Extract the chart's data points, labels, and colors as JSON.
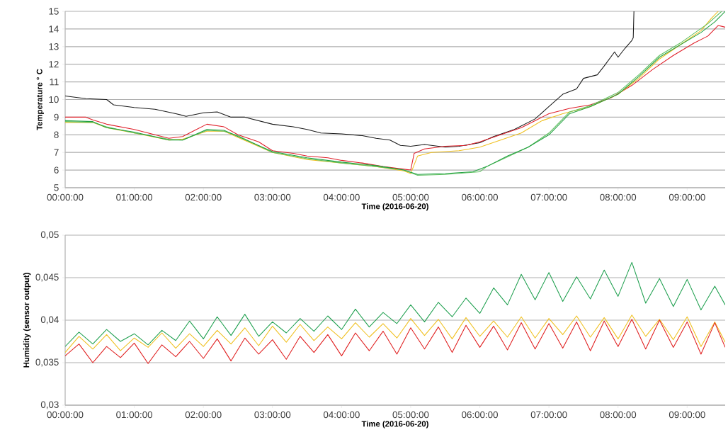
{
  "chart_data": [
    {
      "type": "line",
      "xlabel": "Time (2016-06-20)",
      "ylabel": "Temperature ° C",
      "xlim": [
        0,
        9.55
      ],
      "ylim": [
        5,
        15
      ],
      "xticks": [
        {
          "value": 0,
          "label": "00:00:00"
        },
        {
          "value": 1,
          "label": "01:00:00"
        },
        {
          "value": 2,
          "label": "02:00:00"
        },
        {
          "value": 3,
          "label": "03:00:00"
        },
        {
          "value": 4,
          "label": "04:00:00"
        },
        {
          "value": 5,
          "label": "05:00:00"
        },
        {
          "value": 6,
          "label": "06:00:00"
        },
        {
          "value": 7,
          "label": "07:00:00"
        },
        {
          "value": 8,
          "label": "08:00:00"
        },
        {
          "value": 9,
          "label": "09:00:00"
        }
      ],
      "yticks": [
        5,
        6,
        7,
        8,
        9,
        10,
        11,
        12,
        13,
        14,
        15
      ],
      "grid": "y",
      "series": [
        {
          "color": "#1a1a1a",
          "x": [
            0,
            0.3,
            0.6,
            0.7,
            1.0,
            1.3,
            1.6,
            1.75,
            2.0,
            2.2,
            2.4,
            2.6,
            3.0,
            3.3,
            3.5,
            3.7,
            4.0,
            4.3,
            4.5,
            4.7,
            4.85,
            5.0,
            5.2,
            5.5,
            5.7,
            6.0,
            6.2,
            6.5,
            6.8,
            7.0,
            7.2,
            7.4,
            7.5,
            7.7,
            7.8,
            7.95,
            8.0,
            8.1,
            8.2,
            8.22,
            8.23
          ],
          "values": [
            10.2,
            10.05,
            10.0,
            9.7,
            9.55,
            9.45,
            9.2,
            9.05,
            9.25,
            9.3,
            9.0,
            9.0,
            8.6,
            8.45,
            8.3,
            8.1,
            8.05,
            7.95,
            7.8,
            7.7,
            7.4,
            7.35,
            7.45,
            7.3,
            7.35,
            7.55,
            7.9,
            8.3,
            8.9,
            9.6,
            10.3,
            10.6,
            11.2,
            11.4,
            11.9,
            12.7,
            12.4,
            12.9,
            13.35,
            13.5,
            15
          ]
        },
        {
          "color": "#e0202a",
          "x": [
            0,
            0.3,
            0.4,
            0.6,
            1.0,
            1.5,
            1.7,
            1.9,
            2.05,
            2.3,
            2.5,
            2.8,
            3.0,
            3.3,
            3.5,
            3.8,
            4.0,
            4.3,
            4.6,
            4.9,
            5.0,
            5.05,
            5.2,
            5.5,
            5.8,
            6.0,
            6.3,
            6.6,
            6.9,
            7.0,
            7.3,
            7.6,
            7.9,
            8.2,
            8.5,
            8.8,
            9.1,
            9.3,
            9.45,
            9.55
          ],
          "values": [
            9.0,
            9.0,
            8.85,
            8.6,
            8.3,
            7.8,
            7.9,
            8.3,
            8.6,
            8.45,
            8.0,
            7.6,
            7.1,
            6.95,
            6.8,
            6.7,
            6.55,
            6.4,
            6.2,
            6.05,
            6.0,
            6.95,
            7.2,
            7.35,
            7.4,
            7.6,
            8.0,
            8.4,
            9.0,
            9.2,
            9.5,
            9.7,
            10.1,
            10.8,
            11.7,
            12.5,
            13.2,
            13.6,
            14.2,
            14.1
          ]
        },
        {
          "color": "#f0c020",
          "x": [
            0,
            0.4,
            0.6,
            1.0,
            1.5,
            1.7,
            2.05,
            2.3,
            2.5,
            3.0,
            3.5,
            4.0,
            4.5,
            4.9,
            5.0,
            5.1,
            5.3,
            5.7,
            6.0,
            6.3,
            6.6,
            6.9,
            7.2,
            7.6,
            8.0,
            8.3,
            8.6,
            8.9,
            9.2,
            9.35,
            9.45
          ],
          "values": [
            8.7,
            8.7,
            8.4,
            8.1,
            7.7,
            7.75,
            8.2,
            8.2,
            7.85,
            7.0,
            6.6,
            6.4,
            6.2,
            5.95,
            5.8,
            6.8,
            7.0,
            7.1,
            7.3,
            7.7,
            8.1,
            8.8,
            9.2,
            9.6,
            10.3,
            11.2,
            12.3,
            13.1,
            13.9,
            14.6,
            15
          ]
        },
        {
          "color": "#60c060",
          "x": [
            0,
            0.4,
            0.6,
            1.0,
            1.5,
            1.7,
            2.05,
            2.3,
            2.5,
            3.0,
            3.5,
            4.0,
            4.5,
            4.9,
            5.1,
            5.5,
            6.0,
            6.1,
            6.4,
            6.7,
            7.0,
            7.3,
            7.6,
            8.0,
            8.3,
            8.6,
            8.9,
            9.3,
            9.5
          ],
          "values": [
            8.75,
            8.7,
            8.45,
            8.1,
            7.75,
            7.7,
            8.25,
            8.2,
            7.95,
            7.0,
            6.65,
            6.4,
            6.2,
            6.0,
            5.7,
            5.75,
            5.9,
            6.2,
            6.75,
            7.3,
            8.1,
            9.3,
            9.65,
            10.4,
            11.4,
            12.5,
            13.2,
            14.3,
            15
          ]
        },
        {
          "color": "#20a040",
          "x": [
            0,
            0.4,
            0.6,
            1.0,
            1.5,
            1.7,
            2.05,
            2.3,
            2.5,
            3.0,
            3.5,
            4.0,
            4.5,
            4.9,
            5.1,
            5.5,
            5.9,
            6.1,
            6.4,
            6.7,
            7.0,
            7.3,
            7.6,
            8.0,
            8.3,
            8.6,
            8.9,
            9.2,
            9.4,
            9.55
          ],
          "values": [
            8.8,
            8.75,
            8.4,
            8.15,
            7.7,
            7.7,
            8.3,
            8.25,
            7.9,
            7.05,
            6.7,
            6.45,
            6.25,
            6.0,
            5.75,
            5.8,
            5.9,
            6.2,
            6.8,
            7.3,
            8.0,
            9.2,
            9.6,
            10.3,
            11.3,
            12.4,
            13.1,
            13.8,
            14.4,
            15
          ]
        }
      ]
    },
    {
      "type": "line",
      "xlabel": "Time (2016-06-20)",
      "ylabel": "Humidity (sensor output)",
      "xlim": [
        0,
        9.55
      ],
      "ylim": [
        0.03,
        0.05
      ],
      "xticks": [
        {
          "value": 0,
          "label": "00:00:00"
        },
        {
          "value": 1,
          "label": "01:00:00"
        },
        {
          "value": 2,
          "label": "02:00:00"
        },
        {
          "value": 3,
          "label": "03:00:00"
        },
        {
          "value": 4,
          "label": "04:00:00"
        },
        {
          "value": 5,
          "label": "05:00:00"
        },
        {
          "value": 6,
          "label": "06:00:00"
        },
        {
          "value": 7,
          "label": "07:00:00"
        },
        {
          "value": 8,
          "label": "08:00:00"
        },
        {
          "value": 9,
          "label": "09:00:00"
        }
      ],
      "yticks": [
        {
          "value": 0.03,
          "label": "0,03"
        },
        {
          "value": 0.035,
          "label": "0,035"
        },
        {
          "value": 0.04,
          "label": "0,04"
        },
        {
          "value": 0.045,
          "label": "0,045"
        },
        {
          "value": 0.05,
          "label": "0,05"
        }
      ],
      "grid": "y",
      "series": [
        {
          "color": "#f0c020",
          "x": [
            0,
            0.2,
            0.4,
            0.6,
            0.8,
            1.0,
            1.2,
            1.4,
            1.6,
            1.8,
            2.0,
            2.2,
            2.4,
            2.6,
            2.8,
            3.0,
            3.2,
            3.4,
            3.6,
            3.8,
            4.0,
            4.2,
            4.4,
            4.6,
            4.8,
            5.0,
            5.2,
            5.4,
            5.6,
            5.8,
            6.0,
            6.2,
            6.4,
            6.6,
            6.8,
            7.0,
            7.2,
            7.4,
            7.6,
            7.8,
            8.0,
            8.2,
            8.4,
            8.6,
            8.8,
            9.0,
            9.2,
            9.4,
            9.55
          ],
          "values": [
            0.0362,
            0.0381,
            0.0366,
            0.0383,
            0.0364,
            0.0379,
            0.0368,
            0.0385,
            0.0367,
            0.0384,
            0.0369,
            0.0388,
            0.0372,
            0.0391,
            0.037,
            0.0393,
            0.0374,
            0.0395,
            0.0376,
            0.0392,
            0.0378,
            0.0397,
            0.038,
            0.0396,
            0.0379,
            0.0402,
            0.0382,
            0.0401,
            0.0378,
            0.0403,
            0.0381,
            0.0399,
            0.038,
            0.0404,
            0.0379,
            0.0402,
            0.0383,
            0.0405,
            0.038,
            0.0403,
            0.0378,
            0.0406,
            0.0381,
            0.0401,
            0.0377,
            0.0404,
            0.0369,
            0.0398,
            0.0374
          ]
        },
        {
          "color": "#e02020",
          "x": [
            0,
            0.2,
            0.4,
            0.6,
            0.8,
            1.0,
            1.2,
            1.4,
            1.6,
            1.8,
            2.0,
            2.2,
            2.4,
            2.6,
            2.8,
            3.0,
            3.2,
            3.4,
            3.6,
            3.8,
            4.0,
            4.2,
            4.4,
            4.6,
            4.8,
            5.0,
            5.2,
            5.4,
            5.6,
            5.8,
            6.0,
            6.2,
            6.4,
            6.6,
            6.8,
            7.0,
            7.2,
            7.4,
            7.6,
            7.8,
            8.0,
            8.2,
            8.4,
            8.6,
            8.8,
            9.0,
            9.2,
            9.4,
            9.55
          ],
          "values": [
            0.0358,
            0.0372,
            0.035,
            0.0369,
            0.0356,
            0.0373,
            0.0349,
            0.0371,
            0.0357,
            0.0375,
            0.0355,
            0.0378,
            0.0352,
            0.0379,
            0.036,
            0.0377,
            0.0354,
            0.0381,
            0.0362,
            0.0383,
            0.0358,
            0.0385,
            0.0364,
            0.0387,
            0.036,
            0.0391,
            0.0366,
            0.0392,
            0.0362,
            0.0394,
            0.0368,
            0.0393,
            0.0365,
            0.0397,
            0.0366,
            0.0396,
            0.0367,
            0.0398,
            0.0364,
            0.0399,
            0.0369,
            0.0401,
            0.0366,
            0.04,
            0.0368,
            0.0398,
            0.036,
            0.0397,
            0.0368
          ]
        },
        {
          "color": "#20a050",
          "x": [
            0,
            0.2,
            0.4,
            0.6,
            0.8,
            1.0,
            1.2,
            1.4,
            1.6,
            1.8,
            2.0,
            2.2,
            2.4,
            2.6,
            2.8,
            3.0,
            3.2,
            3.4,
            3.6,
            3.8,
            4.0,
            4.2,
            4.4,
            4.6,
            4.8,
            5.0,
            5.2,
            5.4,
            5.6,
            5.8,
            6.0,
            6.2,
            6.4,
            6.6,
            6.8,
            7.0,
            7.2,
            7.4,
            7.6,
            7.8,
            8.0,
            8.2,
            8.4,
            8.6,
            8.8,
            9.0,
            9.2,
            9.4,
            9.55
          ],
          "values": [
            0.0369,
            0.0386,
            0.0372,
            0.0389,
            0.0375,
            0.0384,
            0.0371,
            0.0388,
            0.0376,
            0.0399,
            0.0378,
            0.0404,
            0.0382,
            0.0407,
            0.0381,
            0.0398,
            0.0385,
            0.0402,
            0.0387,
            0.0405,
            0.0389,
            0.0413,
            0.0392,
            0.0409,
            0.0396,
            0.0418,
            0.0398,
            0.0421,
            0.0404,
            0.0426,
            0.0408,
            0.0438,
            0.0418,
            0.0454,
            0.0424,
            0.0456,
            0.0422,
            0.0451,
            0.0425,
            0.0459,
            0.0428,
            0.0468,
            0.042,
            0.0449,
            0.0416,
            0.0448,
            0.0412,
            0.044,
            0.0418
          ]
        }
      ]
    }
  ]
}
